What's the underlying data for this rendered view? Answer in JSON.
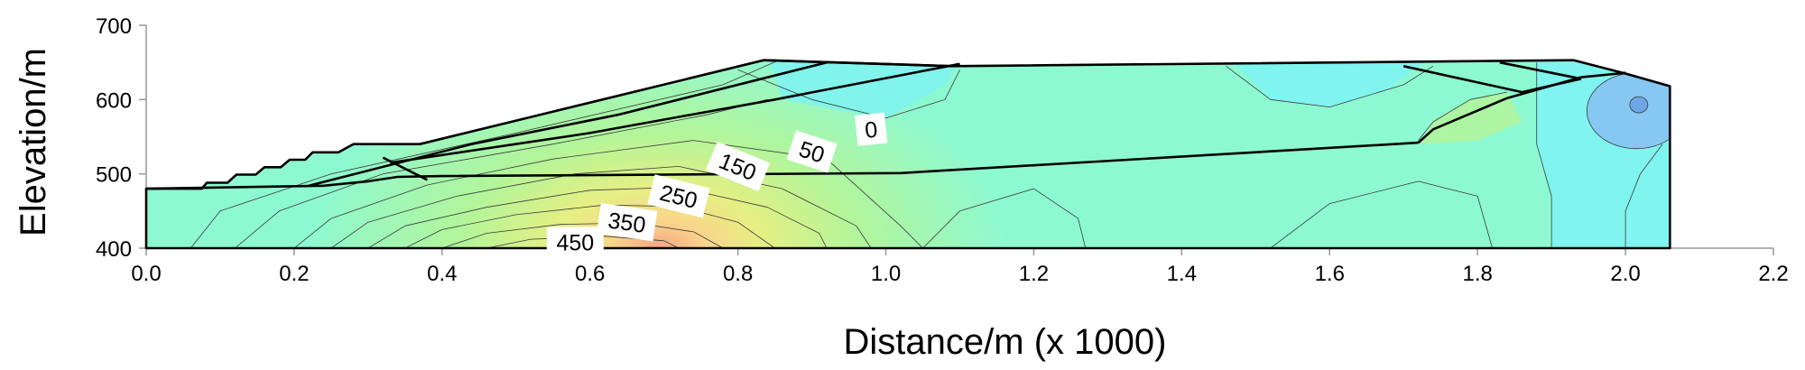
{
  "chart_data": {
    "type": "contour",
    "title": "",
    "xlabel": "Distance/m (x  1000)",
    "ylabel": "Elevation/m",
    "xlim": [
      0.0,
      2.2
    ],
    "ylim": [
      400,
      700
    ],
    "x_ticks": [
      "0.0",
      "0.2",
      "0.4",
      "0.6",
      "0.8",
      "1.0",
      "1.2",
      "1.4",
      "1.6",
      "1.8",
      "2.0",
      "2.2"
    ],
    "x_tick_values": [
      0.0,
      0.2,
      0.4,
      0.6,
      0.8,
      1.0,
      1.2,
      1.4,
      1.6,
      1.8,
      2.0,
      2.2
    ],
    "y_ticks": [
      "400",
      "500",
      "600",
      "700"
    ],
    "y_tick_values": [
      400,
      500,
      600,
      700
    ],
    "grid": false,
    "contour_labels": [
      {
        "text": "0",
        "x": 0.98,
        "y": 560
      },
      {
        "text": "50",
        "x": 0.9,
        "y": 530
      },
      {
        "text": "150",
        "x": 0.8,
        "y": 510
      },
      {
        "text": "250",
        "x": 0.72,
        "y": 470
      },
      {
        "text": "350",
        "x": 0.65,
        "y": 435
      },
      {
        "text": "450",
        "x": 0.58,
        "y": 408
      }
    ],
    "colors": {
      "cold": "#7ff3f0",
      "cool": "#8df9d2",
      "mild": "#b3f59a",
      "warm": "#e6ef83",
      "hot": "#f9d58a",
      "hottest": "#f5a485",
      "pocket": "#87c8f3",
      "structure_line": "#000000",
      "contour_line": "#3b3b3b"
    }
  }
}
